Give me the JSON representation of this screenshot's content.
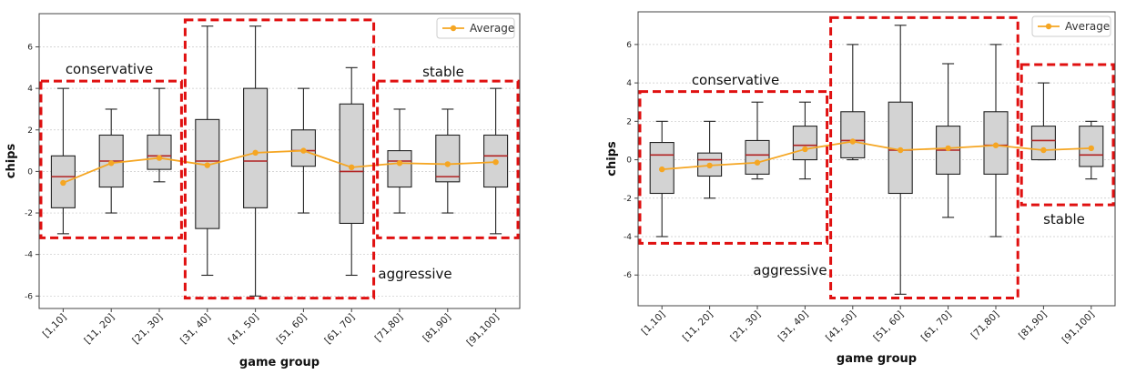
{
  "chart_data": [
    {
      "type": "box",
      "xlabel": "game group",
      "ylabel": "chips",
      "ylim": [
        -6.6,
        7.6
      ],
      "yticks": [
        -6,
        -4,
        -2,
        0,
        2,
        4,
        6
      ],
      "grid": "horizontal",
      "legend": {
        "position": "top-right",
        "label": "Average"
      },
      "categories": [
        "[1,10]",
        "[11, 20]",
        "[21, 30]",
        "[31, 40]",
        "[41, 50]",
        "[51, 60]",
        "[61, 70]",
        "[71,80]",
        "[81,90]",
        "[91,100]"
      ],
      "boxes": [
        {
          "whislo": -3.0,
          "q1": -1.75,
          "med": -0.25,
          "q3": 0.75,
          "whishi": 4.0
        },
        {
          "whislo": -2.0,
          "q1": -0.75,
          "med": 0.5,
          "q3": 1.75,
          "whishi": 3.0
        },
        {
          "whislo": -0.5,
          "q1": 0.1,
          "med": 0.75,
          "q3": 1.75,
          "whishi": 4.0
        },
        {
          "whislo": -5.0,
          "q1": -2.75,
          "med": 0.5,
          "q3": 2.5,
          "whishi": 7.0
        },
        {
          "whislo": -6.0,
          "q1": -1.75,
          "med": 0.5,
          "q3": 4.0,
          "whishi": 7.0
        },
        {
          "whislo": -2.0,
          "q1": 0.25,
          "med": 1.0,
          "q3": 2.0,
          "whishi": 4.0
        },
        {
          "whislo": -5.0,
          "q1": -2.5,
          "med": 0.0,
          "q3": 3.25,
          "whishi": 5.0
        },
        {
          "whislo": -2.0,
          "q1": -0.75,
          "med": 0.5,
          "q3": 1.0,
          "whishi": 3.0
        },
        {
          "whislo": -2.0,
          "q1": -0.5,
          "med": -0.25,
          "q3": 1.75,
          "whishi": 3.0
        },
        {
          "whislo": -3.0,
          "q1": -0.75,
          "med": 0.75,
          "q3": 1.75,
          "whishi": 4.0
        }
      ],
      "averages": [
        -0.55,
        0.4,
        0.65,
        0.3,
        0.9,
        1.0,
        0.2,
        0.4,
        0.35,
        0.45
      ],
      "groups": [
        {
          "label": "conservative",
          "from": 0,
          "to": 2,
          "ymin": -3.2,
          "ymax": 4.35
        },
        {
          "label": "aggressive",
          "from": 3,
          "to": 6,
          "ymin": -6.1,
          "ymax": 7.3
        },
        {
          "label": "stable",
          "from": 7,
          "to": 9,
          "ymin": -3.2,
          "ymax": 4.35
        }
      ]
    },
    {
      "type": "box",
      "xlabel": "game group",
      "ylabel": "chips",
      "ylim": [
        -7.6,
        7.7
      ],
      "yticks": [
        -6,
        -4,
        -2,
        0,
        2,
        4,
        6
      ],
      "grid": "horizontal",
      "legend": {
        "position": "top-right",
        "label": "Average"
      },
      "categories": [
        "[1,10]",
        "[11, 20]",
        "[21, 30]",
        "[31, 40]",
        "[41, 50]",
        "[51, 60]",
        "[61, 70]",
        "[71,80]",
        "[81,90]",
        "[91,100]"
      ],
      "boxes": [
        {
          "whislo": -4.0,
          "q1": -1.75,
          "med": 0.25,
          "q3": 0.9,
          "whishi": 2.0
        },
        {
          "whislo": -2.0,
          "q1": -0.85,
          "med": 0.0,
          "q3": 0.35,
          "whishi": 2.0
        },
        {
          "whislo": -1.0,
          "q1": -0.75,
          "med": 0.25,
          "q3": 1.0,
          "whishi": 3.0
        },
        {
          "whislo": -1.0,
          "q1": 0.0,
          "med": 0.75,
          "q3": 1.75,
          "whishi": 3.0
        },
        {
          "whislo": 0.0,
          "q1": 0.1,
          "med": 1.0,
          "q3": 2.5,
          "whishi": 6.0
        },
        {
          "whislo": -7.0,
          "q1": -1.75,
          "med": 0.5,
          "q3": 3.0,
          "whishi": 7.0
        },
        {
          "whislo": -3.0,
          "q1": -0.75,
          "med": 0.5,
          "q3": 1.75,
          "whishi": 5.0
        },
        {
          "whislo": -4.0,
          "q1": -0.75,
          "med": 0.75,
          "q3": 2.5,
          "whishi": 6.0
        },
        {
          "whislo": 0.0,
          "q1": 0.0,
          "med": 1.0,
          "q3": 1.75,
          "whishi": 4.0
        },
        {
          "whislo": -1.0,
          "q1": -0.35,
          "med": 0.25,
          "q3": 1.75,
          "whishi": 2.0
        }
      ],
      "averages": [
        -0.5,
        -0.3,
        -0.15,
        0.55,
        0.95,
        0.5,
        0.6,
        0.75,
        0.5,
        0.6
      ],
      "groups": [
        {
          "label": "conservative",
          "from": 0,
          "to": 3,
          "ymin": -4.35,
          "ymax": 3.55
        },
        {
          "label": "aggressive",
          "from": 4,
          "to": 7,
          "ymin": -7.2,
          "ymax": 7.4
        },
        {
          "label": "stable",
          "from": 8,
          "to": 9,
          "ymin": -2.35,
          "ymax": 4.95
        }
      ]
    }
  ]
}
